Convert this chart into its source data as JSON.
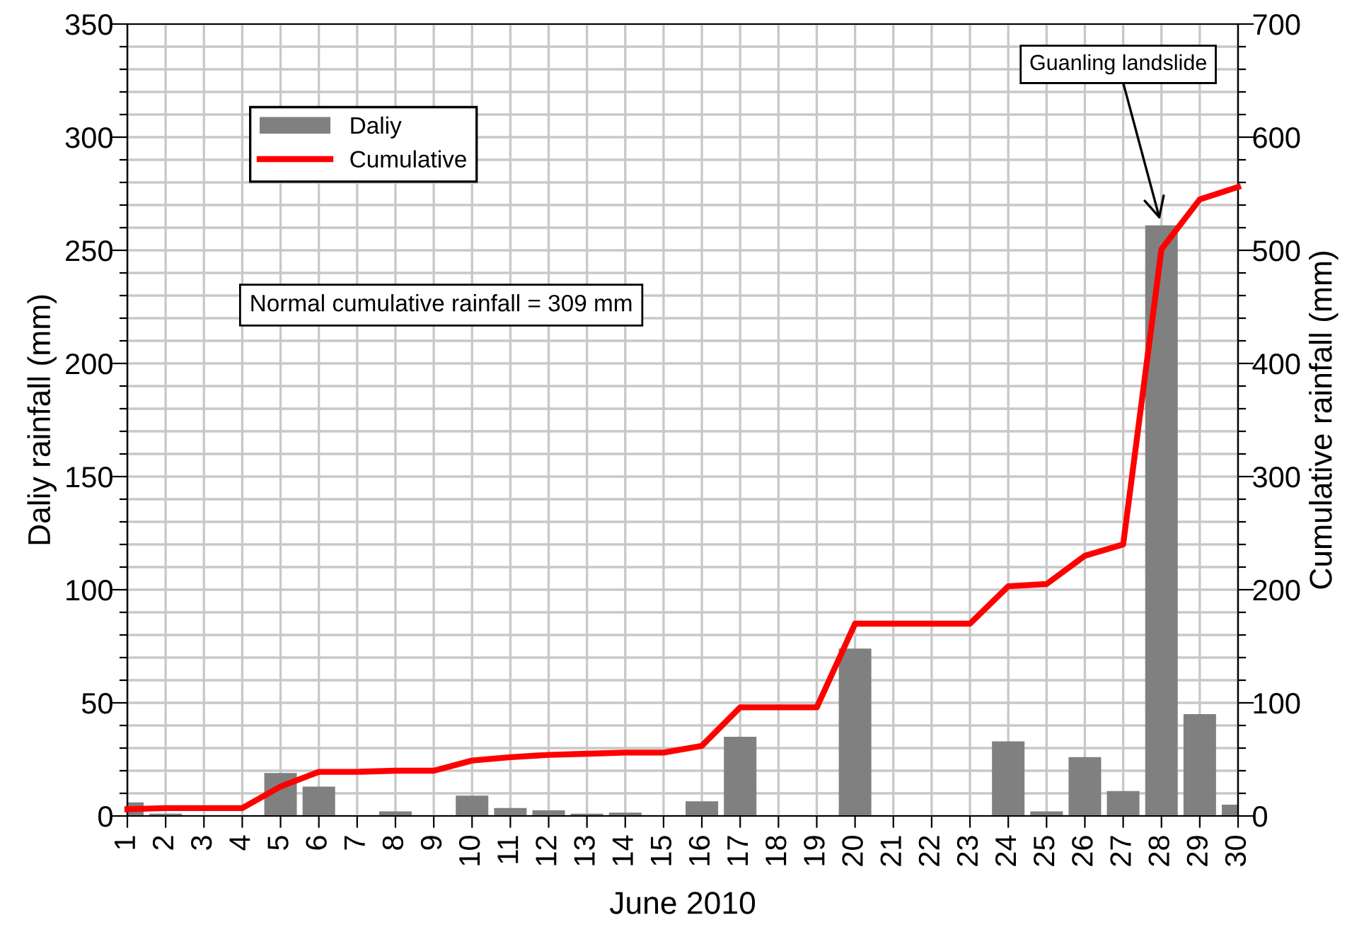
{
  "chart_data": {
    "type": "bar",
    "xlabel": "June 2010",
    "ylabel": "Daliy rainfall (mm)",
    "y2label": "Cumulative rainfall (mm)",
    "x": [
      1,
      2,
      3,
      4,
      5,
      6,
      7,
      8,
      9,
      10,
      11,
      12,
      13,
      14,
      15,
      16,
      17,
      18,
      19,
      20,
      21,
      22,
      23,
      24,
      25,
      26,
      27,
      28,
      29,
      30
    ],
    "xlim": [
      1,
      30
    ],
    "xticks": [
      1,
      2,
      3,
      4,
      5,
      6,
      7,
      8,
      9,
      10,
      11,
      12,
      13,
      14,
      15,
      16,
      17,
      18,
      19,
      20,
      21,
      22,
      23,
      24,
      25,
      26,
      27,
      28,
      29,
      30
    ],
    "ylim": [
      0,
      350
    ],
    "yticks": [
      0,
      {
        "value": 10,
        "label": null
      },
      {
        "value": 20,
        "label": null
      },
      {
        "value": 30,
        "label": null
      },
      {
        "value": 40,
        "label": null
      },
      50,
      {
        "value": 60,
        "label": null
      },
      {
        "value": 70,
        "label": null
      },
      {
        "value": 80,
        "label": null
      },
      {
        "value": 90,
        "label": null
      },
      100,
      {
        "value": 110,
        "label": null
      },
      {
        "value": 120,
        "label": null
      },
      {
        "value": 130,
        "label": null
      },
      {
        "value": 140,
        "label": null
      },
      150,
      {
        "value": 160,
        "label": null
      },
      {
        "value": 170,
        "label": null
      },
      {
        "value": 180,
        "label": null
      },
      {
        "value": 190,
        "label": null
      },
      200,
      {
        "value": 210,
        "label": null
      },
      {
        "value": 220,
        "label": null
      },
      {
        "value": 230,
        "label": null
      },
      {
        "value": 240,
        "label": null
      },
      250,
      {
        "value": 260,
        "label": null
      },
      {
        "value": 270,
        "label": null
      },
      {
        "value": 280,
        "label": null
      },
      {
        "value": 290,
        "label": null
      },
      300,
      {
        "value": 310,
        "label": null
      },
      {
        "value": 320,
        "label": null
      },
      {
        "value": 330,
        "label": null
      },
      {
        "value": 340,
        "label": null
      },
      350
    ],
    "y2lim": [
      0,
      700
    ],
    "y2ticks": [
      0,
      {
        "value": 20,
        "label": null
      },
      {
        "value": 40,
        "label": null
      },
      {
        "value": 60,
        "label": null
      },
      {
        "value": 80,
        "label": null
      },
      100,
      {
        "value": 120,
        "label": null
      },
      {
        "value": 140,
        "label": null
      },
      {
        "value": 160,
        "label": null
      },
      {
        "value": 180,
        "label": null
      },
      200,
      {
        "value": 220,
        "label": null
      },
      {
        "value": 240,
        "label": null
      },
      {
        "value": 260,
        "label": null
      },
      {
        "value": 280,
        "label": null
      },
      300,
      {
        "value": 320,
        "label": null
      },
      {
        "value": 340,
        "label": null
      },
      {
        "value": 360,
        "label": null
      },
      {
        "value": 380,
        "label": null
      },
      400,
      {
        "value": 420,
        "label": null
      },
      {
        "value": 440,
        "label": null
      },
      {
        "value": 460,
        "label": null
      },
      {
        "value": 480,
        "label": null
      },
      500,
      {
        "value": 520,
        "label": null
      },
      {
        "value": 540,
        "label": null
      },
      {
        "value": 560,
        "label": null
      },
      {
        "value": 580,
        "label": null
      },
      600,
      {
        "value": 620,
        "label": null
      },
      {
        "value": 640,
        "label": null
      },
      {
        "value": 660,
        "label": null
      },
      {
        "value": 680,
        "label": null
      },
      700
    ],
    "series": [
      {
        "name": "Daliy",
        "color": "#808080",
        "values": [
          6,
          1,
          0,
          0,
          19,
          13,
          0,
          2,
          0,
          9,
          3.5,
          2.5,
          1,
          1.5,
          0,
          6.5,
          35,
          0,
          0,
          74,
          0,
          0,
          0,
          33,
          2,
          26,
          11,
          261,
          45,
          5
        ]
      },
      {
        "name": "Cumulative",
        "type": "line",
        "axis": "y2",
        "color": "#ff0000",
        "values": [
          6,
          7,
          7,
          7,
          26,
          39,
          39,
          40,
          40,
          49,
          52,
          54,
          55,
          56,
          56,
          62,
          96,
          96,
          96,
          170,
          170,
          170,
          170,
          203,
          205,
          230,
          240,
          501,
          545,
          556
        ]
      }
    ],
    "annotations": [
      {
        "text": "Guanling landslide",
        "x": 28,
        "y": 261
      },
      "Normal cumulative rainfall = 309 mm"
    ],
    "grid": true,
    "legend": "top left",
    "marker": "none",
    "line_style": "solid"
  }
}
